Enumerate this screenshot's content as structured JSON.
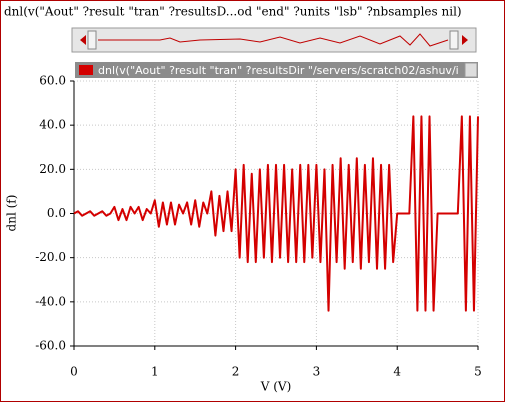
{
  "chart_data": {
    "type": "line",
    "title": "dnl(v(\"Aout\" ?result \"tran\" ?resultsD...od \"end\" ?units \"lsb\" ?nbsamples nil)",
    "x_label": "V (V)",
    "y_label": "dnl (f)",
    "x": [
      0,
      0.05,
      0.1,
      0.15,
      0.2,
      0.25,
      0.3,
      0.35,
      0.4,
      0.45,
      0.5,
      0.55,
      0.6,
      0.65,
      0.7,
      0.75,
      0.8,
      0.85,
      0.9,
      0.95,
      1,
      1.05,
      1.1,
      1.15,
      1.2,
      1.25,
      1.3,
      1.35,
      1.4,
      1.45,
      1.5,
      1.55,
      1.6,
      1.65,
      1.7,
      1.75,
      1.8,
      1.85,
      1.9,
      1.95,
      2,
      2.05,
      2.1,
      2.15,
      2.2,
      2.25,
      2.3,
      2.35,
      2.4,
      2.45,
      2.5,
      2.55,
      2.6,
      2.65,
      2.7,
      2.75,
      2.8,
      2.85,
      2.9,
      2.95,
      3,
      3.05,
      3.1,
      3.15,
      3.2,
      3.25,
      3.3,
      3.35,
      3.4,
      3.45,
      3.5,
      3.55,
      3.6,
      3.65,
      3.7,
      3.75,
      3.8,
      3.85,
      3.9,
      3.95,
      4,
      4.05,
      4.1,
      4.15,
      4.2,
      4.25,
      4.3,
      4.35,
      4.4,
      4.45,
      4.5,
      4.55,
      4.6,
      4.65,
      4.7,
      4.75,
      4.8,
      4.85,
      4.9,
      4.95,
      5
    ],
    "series": [
      {
        "name": "dnl(v(\"Aout\" ?result \"tran\" ?resultsDir \"/servers/scratch02/ashuv/i",
        "color": "#d40000",
        "values": [
          0,
          1,
          -1,
          0,
          1,
          -1,
          0,
          1,
          -1,
          0,
          3,
          -3,
          2,
          -3,
          3,
          0,
          3,
          -3,
          2,
          0,
          6,
          -6,
          5,
          -5,
          5,
          -5,
          4,
          0,
          5,
          -5,
          6,
          -6,
          5,
          0,
          10,
          -10,
          8,
          -8,
          10,
          -8,
          20,
          -20,
          22,
          -22,
          18,
          -22,
          20,
          -20,
          22,
          -22,
          22,
          -20,
          22,
          -22,
          20,
          -22,
          22,
          -22,
          22,
          -20,
          22,
          -22,
          20,
          -44,
          22,
          -22,
          25,
          -25,
          22,
          -22,
          25,
          -25,
          22,
          -22,
          25,
          -25,
          22,
          -25,
          22,
          -22,
          0,
          0,
          0,
          0,
          44,
          -44,
          44,
          -44,
          44,
          -44,
          0,
          0,
          0,
          0,
          0,
          0,
          44,
          -44,
          44,
          -44,
          44
        ]
      }
    ],
    "xlim": [
      0,
      5
    ],
    "ylim": [
      -60,
      60
    ],
    "xticks": [
      0,
      1,
      2,
      3,
      4,
      5
    ],
    "yticks": [
      {
        "value": -60,
        "label": "-60.0"
      },
      {
        "value": -40,
        "label": "-40.0"
      },
      {
        "value": -20,
        "label": "-20.0"
      },
      {
        "value": 0,
        "label": "0.0"
      },
      {
        "value": 20,
        "label": "20.0"
      },
      {
        "value": 40,
        "label": "40.0"
      },
      {
        "value": 60,
        "label": "60.0"
      }
    ],
    "grid": true
  }
}
